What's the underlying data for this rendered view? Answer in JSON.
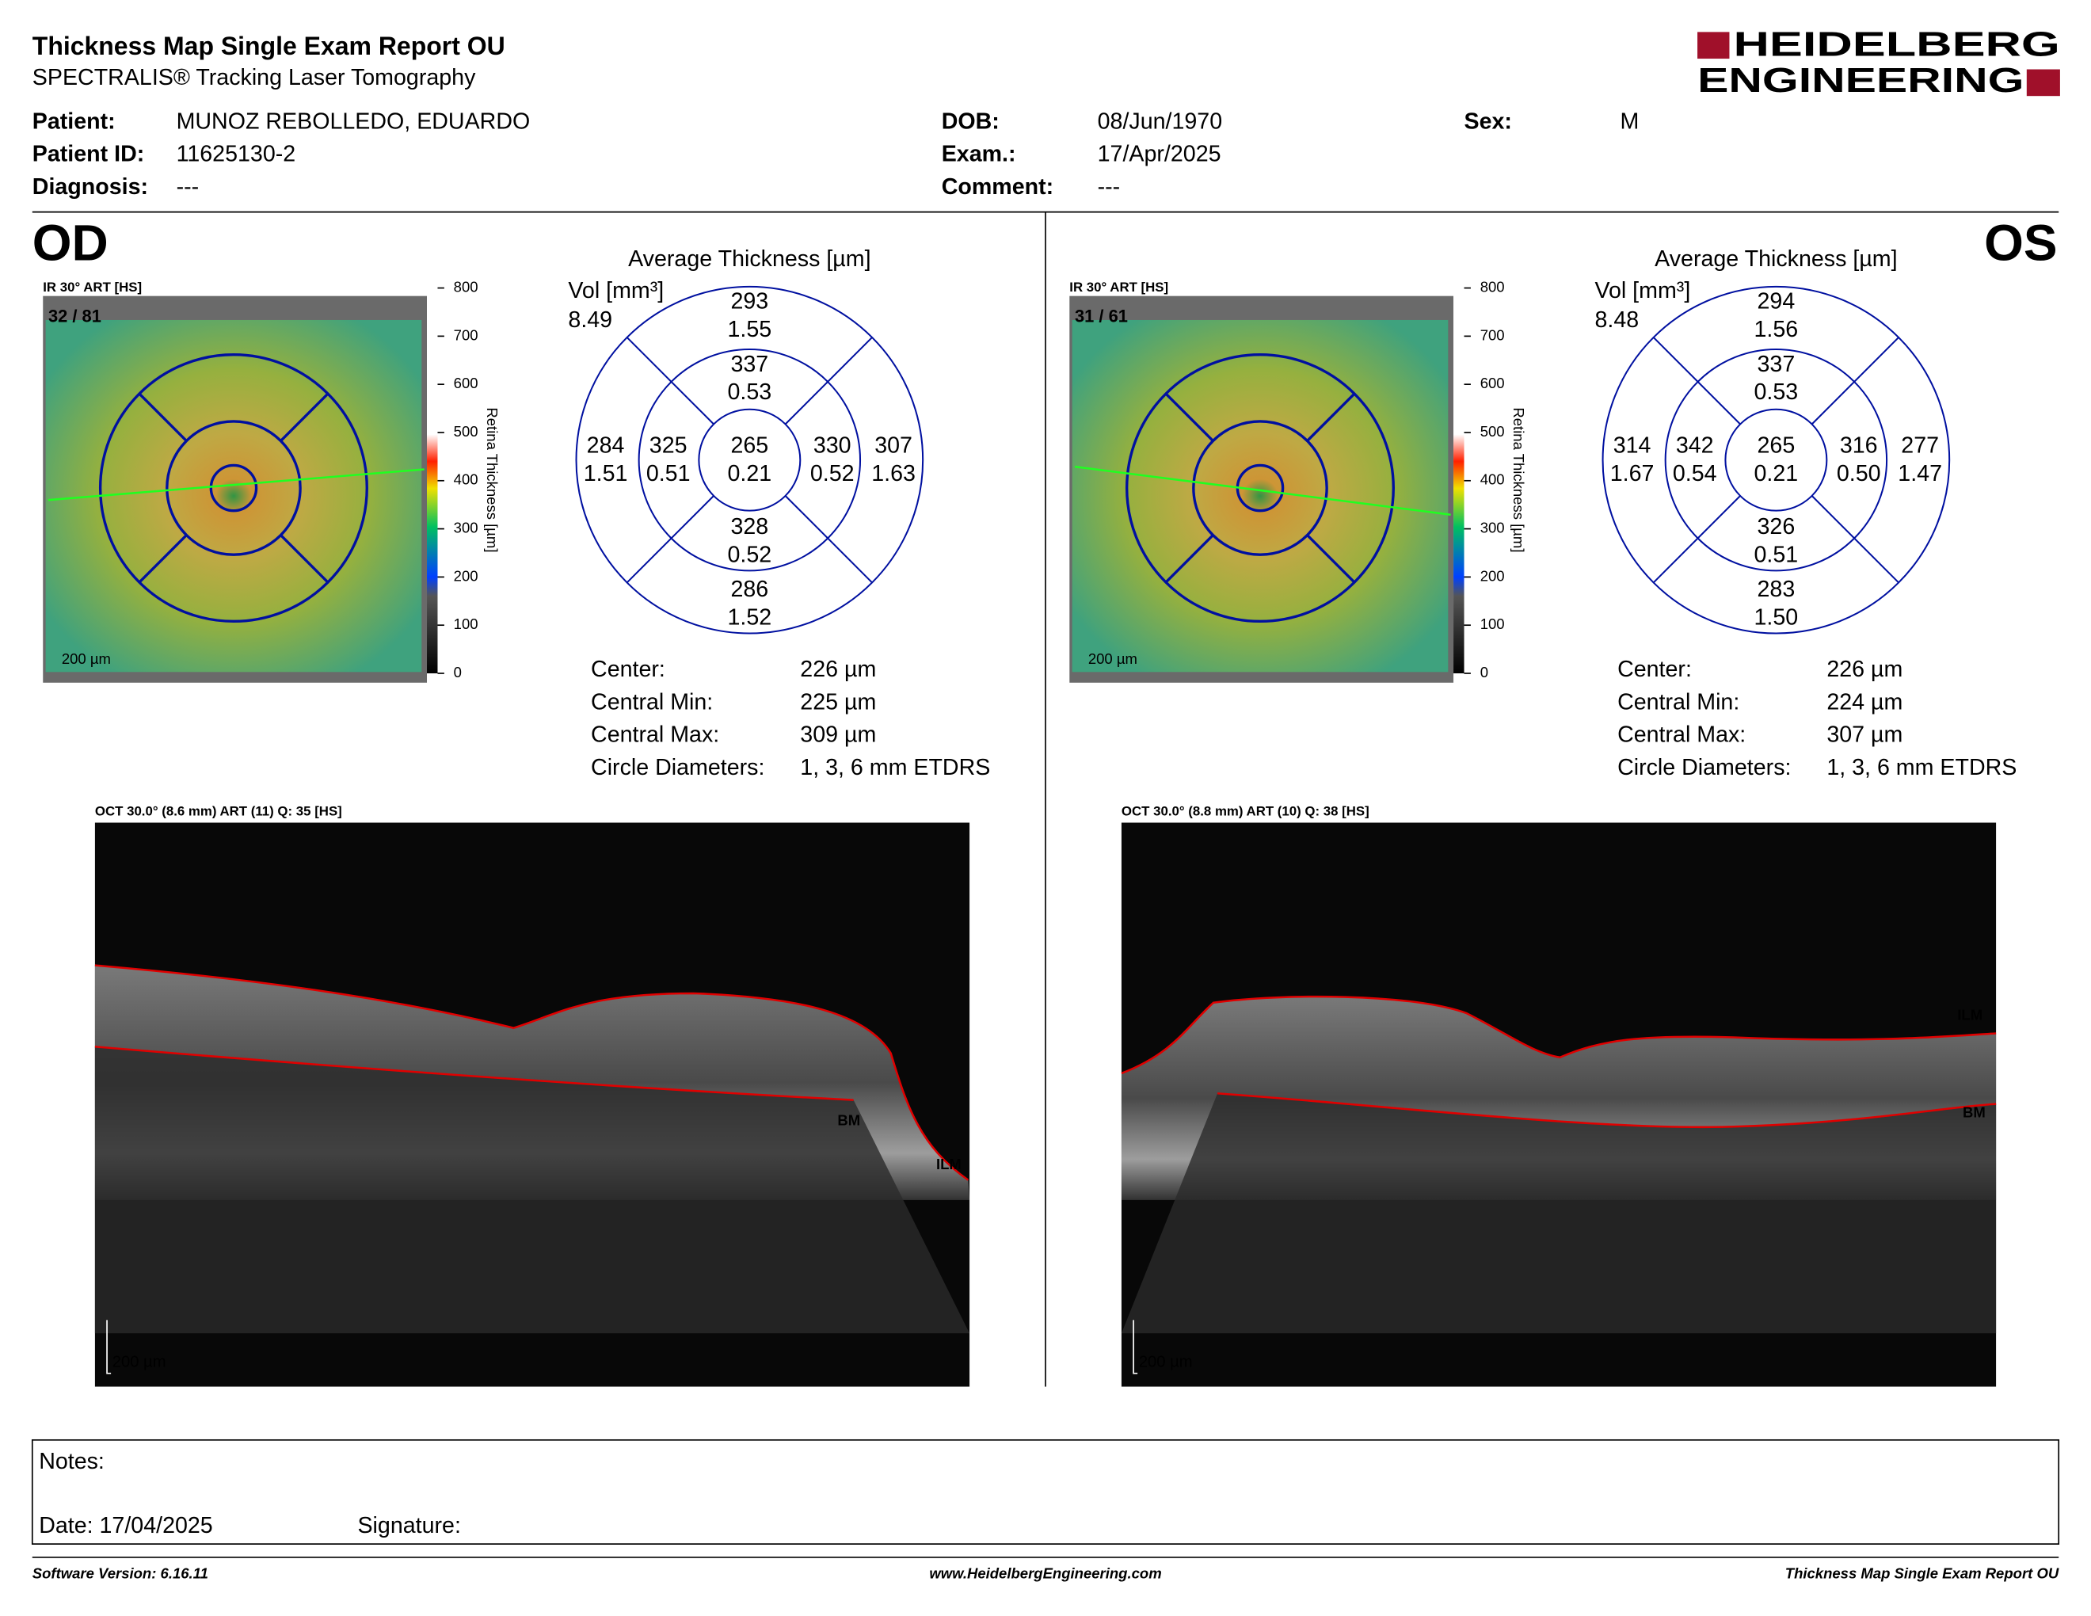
{
  "header": {
    "title": "Thickness Map Single Exam Report OU",
    "subtitle": "SPECTRALIS® Tracking Laser Tomography",
    "logo": [
      "HEIDELBERG",
      "ENGINEERING"
    ]
  },
  "patient": {
    "rows": [
      [
        {
          "label": "Patient:",
          "value": "MUNOZ REBOLLEDO, EDUARDO"
        },
        {
          "label": "DOB:",
          "value": "08/Jun/1970"
        },
        {
          "label": "Sex:",
          "value": "M"
        }
      ],
      [
        {
          "label": "Patient ID:",
          "value": "11625130-2"
        },
        {
          "label": "Exam.:",
          "value": "17/Apr/2025"
        }
      ],
      [
        {
          "label": "Diagnosis:",
          "value": "---"
        },
        {
          "label": "Comment:",
          "value": "---"
        }
      ]
    ]
  },
  "eyes": [
    {
      "label": "OD",
      "ir_label": "IR 30° ART [HS]",
      "ir_overlay": "32 / 81",
      "ir_scale": "200 µm",
      "colorbar_ticks": [
        "800",
        "700",
        "600",
        "500",
        "400",
        "300",
        "200",
        "100",
        "0"
      ],
      "colorbar_label": "Retina Thickness [µm]",
      "map_title": "Average Thickness [µm]",
      "vol_label": "Vol [mm³]",
      "vol_total": "8.49",
      "sectors": [
        [
          "293",
          "1.55"
        ],
        [
          "337",
          "0.53"
        ],
        [
          "284",
          "1.51"
        ],
        [
          "325",
          "0.51"
        ],
        [
          "265",
          "0.21"
        ],
        [
          "330",
          "0.52"
        ],
        [
          "307",
          "1.63"
        ],
        [
          "328",
          "0.52"
        ],
        [
          "286",
          "1.52"
        ]
      ],
      "stats": [
        [
          "Center:",
          "226 µm"
        ],
        [
          "Central Min:",
          "225 µm"
        ],
        [
          "Central Max:",
          "309 µm"
        ],
        [
          "Circle Diameters:",
          "1, 3, 6 mm ETDRS"
        ]
      ],
      "oct_label": "OCT 30.0° (8.6 mm) ART (11) Q: 35 [HS]",
      "oct_scale": "200 µm",
      "oct_markers": [
        "BM",
        "ILM"
      ]
    },
    {
      "label": "OS",
      "ir_label": "IR 30° ART [HS]",
      "ir_overlay": "31 / 61",
      "ir_scale": "200 µm",
      "colorbar_ticks": [
        "800",
        "700",
        "600",
        "500",
        "400",
        "300",
        "200",
        "100",
        "0"
      ],
      "colorbar_label": "Retina Thickness [µm]",
      "map_title": "Average Thickness [µm]",
      "vol_label": "Vol [mm³]",
      "vol_total": "8.48",
      "sectors": [
        [
          "294",
          "1.56"
        ],
        [
          "337",
          "0.53"
        ],
        [
          "314",
          "1.67"
        ],
        [
          "342",
          "0.54"
        ],
        [
          "265",
          "0.21"
        ],
        [
          "316",
          "0.50"
        ],
        [
          "277",
          "1.47"
        ],
        [
          "326",
          "0.51"
        ],
        [
          "283",
          "1.50"
        ]
      ],
      "stats": [
        [
          "Center:",
          "226 µm"
        ],
        [
          "Central Min:",
          "224 µm"
        ],
        [
          "Central Max:",
          "307 µm"
        ],
        [
          "Circle Diameters:",
          "1, 3, 6 mm ETDRS"
        ]
      ],
      "oct_label": "OCT 30.0° (8.8 mm) ART (10) Q: 38 [HS]",
      "oct_scale": "200 µm",
      "oct_markers": [
        "ILM",
        "BM"
      ]
    }
  ],
  "notes": {
    "notes": "Notes:",
    "date": "Date: 17/04/2025",
    "signature": "Signature:"
  },
  "footer": {
    "software": "Software Version: 6.16.11",
    "url": "www.HeidelbergEngineering.com",
    "report": "Thickness Map Single Exam Report OU"
  }
}
